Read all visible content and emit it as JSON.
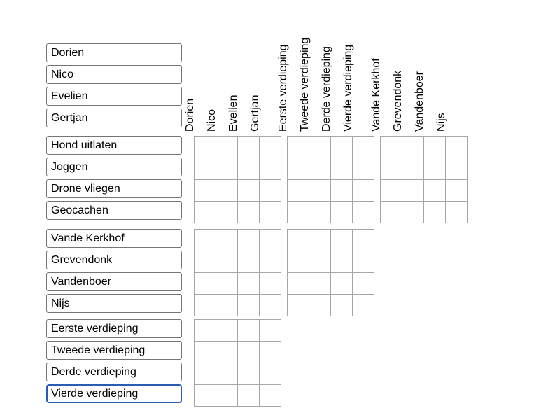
{
  "columns": {
    "groups": [
      {
        "id": "names",
        "labels": [
          "Dorien",
          "Nico",
          "Evelien",
          "Gertjan"
        ]
      },
      {
        "id": "floors",
        "labels": [
          "Eerste verdieping",
          "Tweede verdieping",
          "Derde verdieping",
          "Vierde verdieping"
        ]
      },
      {
        "id": "surnames",
        "labels": [
          "Vande Kerkhof",
          "Grevendonk",
          "Vandenboer",
          "Nijs"
        ]
      }
    ]
  },
  "rows": {
    "groups": [
      {
        "id": "names",
        "labels": [
          "Dorien",
          "Nico",
          "Evelien",
          "Gertjan"
        ]
      },
      {
        "id": "activities",
        "labels": [
          "Hond uitlaten",
          "Joggen",
          "Drone vliegen",
          "Geocachen"
        ]
      },
      {
        "id": "surnames",
        "labels": [
          "Vande Kerkhof",
          "Grevendonk",
          "Vandenboer",
          "Nijs"
        ]
      },
      {
        "id": "floors",
        "labels": [
          "Eerste verdieping",
          "Tweede verdieping",
          "Derde verdieping",
          "Vierde verdieping"
        ]
      }
    ]
  },
  "selection": {
    "selected_label": "Vierde verdieping",
    "selected_row_group": "floors"
  },
  "grid": {
    "rows_per_block": 4,
    "cols_per_block": 4,
    "cells_state": "all-empty",
    "blocks": [
      {
        "row_group": "activities",
        "col_group": "names"
      },
      {
        "row_group": "activities",
        "col_group": "floors"
      },
      {
        "row_group": "activities",
        "col_group": "surnames"
      },
      {
        "row_group": "surnames",
        "col_group": "names"
      },
      {
        "row_group": "surnames",
        "col_group": "floors"
      },
      {
        "row_group": "floors",
        "col_group": "names"
      }
    ]
  },
  "colors": {
    "background": "#ffffff",
    "text": "#000000",
    "box_border": "#757575",
    "grid_border": "#a6a6a6",
    "selected_border": "#2b5cb5"
  }
}
